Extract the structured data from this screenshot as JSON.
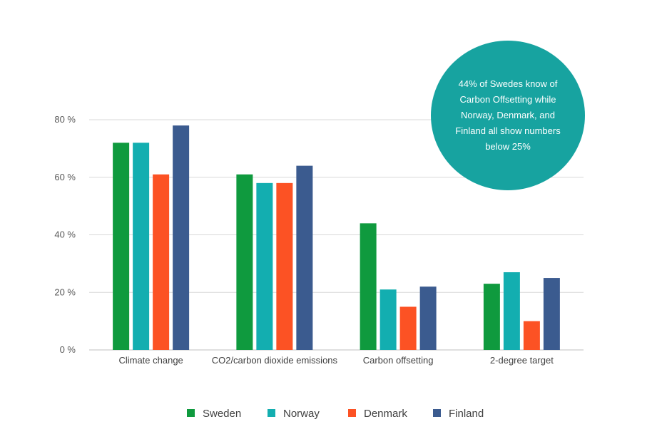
{
  "chart_data": {
    "type": "bar",
    "categories": [
      "Climate change",
      "CO2/carbon dioxide emissions",
      "Carbon offsetting",
      "2-degree target"
    ],
    "series": [
      {
        "name": "Sweden",
        "color": "#0f9a3e",
        "values": [
          72,
          61,
          44,
          23
        ]
      },
      {
        "name": "Norway",
        "color": "#13aeb0",
        "values": [
          72,
          58,
          21,
          27
        ]
      },
      {
        "name": "Denmark",
        "color": "#fc5224",
        "values": [
          61,
          58,
          15,
          10
        ]
      },
      {
        "name": "Finland",
        "color": "#3b5b8f",
        "values": [
          78,
          64,
          22,
          25
        ]
      }
    ],
    "ylim": [
      0,
      80
    ],
    "yticks": [
      "0 %",
      "20 %",
      "40 %",
      "60 %",
      "80 %"
    ],
    "grid": true,
    "legend_position": "bottom"
  },
  "callout": {
    "text": "44% of Swedes know of Carbon Offsetting while Norway, Denmark, and Finland all show numbers below 25%",
    "color": "#17a3a0"
  }
}
